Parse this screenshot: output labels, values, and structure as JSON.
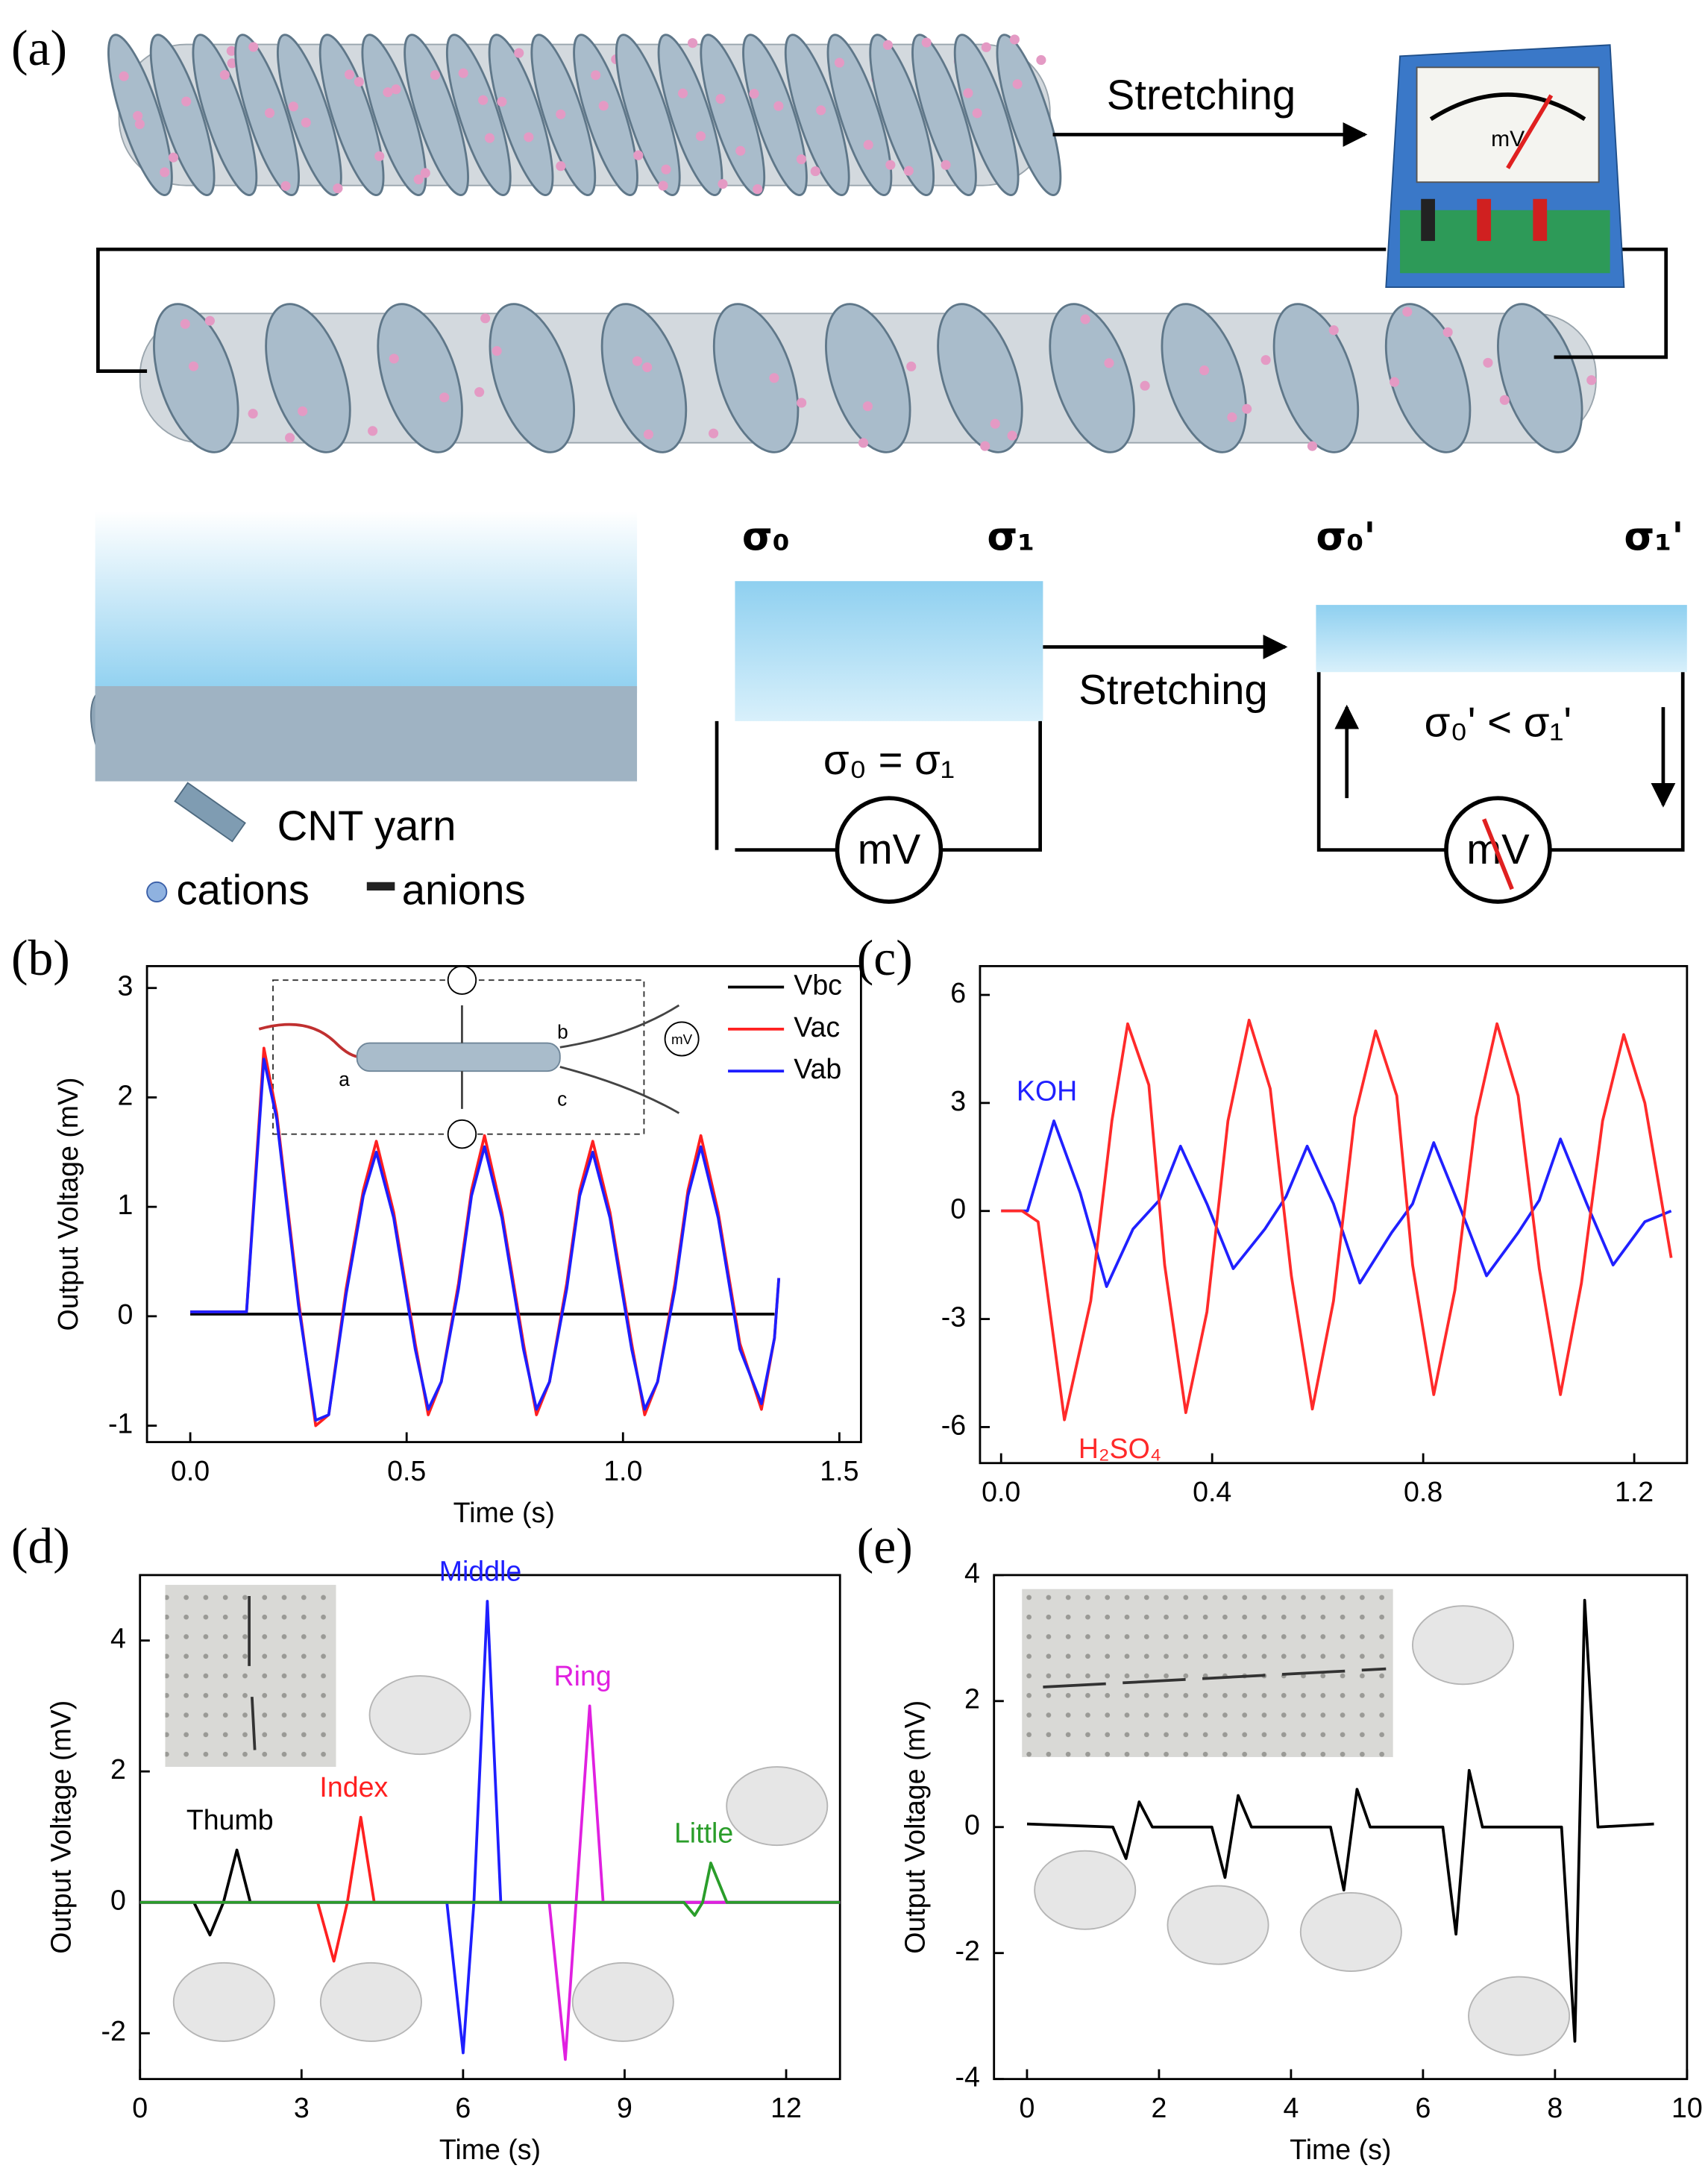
{
  "panel_labels": [
    "(a)",
    "(b)",
    "(c)",
    "(d)",
    "(e)"
  ],
  "diagram": {
    "texts": [
      "Stretching",
      "mV",
      "σ₀",
      "σ₁",
      "σ₀ = σ₁",
      "mV",
      "Stretching",
      "σ₀'",
      "σ₁'",
      "σ₀' < σ₁'",
      "mV",
      "CNT yarn",
      "cations",
      "anions"
    ]
  },
  "chart_data": [
    {
      "type": "line",
      "xlabel": "Time (s)",
      "ylabel": "Output Voltage (mV)",
      "xlim": [
        -0.1,
        1.55
      ],
      "ylim": [
        -1.15,
        3.2
      ],
      "xticks": [
        {
          "value": 0,
          "label": "0.0"
        },
        0.5,
        {
          "value": 1,
          "label": "1.0"
        },
        1.5
      ],
      "yticks": [
        -1,
        0,
        1,
        2,
        3
      ],
      "legend": "upper right",
      "annotations": [
        "a",
        "b",
        "c",
        "mV"
      ],
      "series": [
        {
          "name": "Vbc",
          "color": "#000000",
          "x": [
            0,
            1.35
          ],
          "values": [
            0.02,
            0.02
          ]
        },
        {
          "name": "Vac",
          "color": "#ff2020",
          "x": [
            0,
            0.13,
            0.15,
            0.17,
            0.2,
            0.25,
            0.29,
            0.32,
            0.36,
            0.4,
            0.43,
            0.47,
            0.52,
            0.55,
            0.58,
            0.62,
            0.65,
            0.68,
            0.72,
            0.77,
            0.8,
            0.83,
            0.87,
            0.9,
            0.93,
            0.97,
            1.02,
            1.05,
            1.08,
            1.12,
            1.15,
            1.18,
            1.22,
            1.27,
            1.32,
            1.35,
            1.36
          ],
          "values": [
            0.04,
            0.04,
            1.25,
            2.45,
            1.85,
            0.15,
            -1.0,
            -0.9,
            0.25,
            1.15,
            1.6,
            0.95,
            -0.25,
            -0.9,
            -0.6,
            0.3,
            1.15,
            1.65,
            0.95,
            -0.25,
            -0.9,
            -0.6,
            0.3,
            1.15,
            1.6,
            0.95,
            -0.25,
            -0.9,
            -0.6,
            0.3,
            1.15,
            1.65,
            0.95,
            -0.25,
            -0.85,
            -0.2,
            0.35
          ]
        },
        {
          "name": "Vab",
          "color": "#1e1eff",
          "x": [
            0,
            0.13,
            0.15,
            0.17,
            0.2,
            0.25,
            0.29,
            0.32,
            0.36,
            0.4,
            0.43,
            0.47,
            0.52,
            0.55,
            0.58,
            0.62,
            0.65,
            0.68,
            0.72,
            0.77,
            0.8,
            0.83,
            0.87,
            0.9,
            0.93,
            0.97,
            1.02,
            1.05,
            1.08,
            1.12,
            1.15,
            1.18,
            1.22,
            1.27,
            1.32,
            1.35,
            1.36
          ],
          "values": [
            0.04,
            0.04,
            1.2,
            2.35,
            1.8,
            0.1,
            -0.95,
            -0.9,
            0.2,
            1.1,
            1.5,
            0.9,
            -0.3,
            -0.85,
            -0.6,
            0.25,
            1.1,
            1.55,
            0.9,
            -0.3,
            -0.85,
            -0.6,
            0.25,
            1.1,
            1.5,
            0.9,
            -0.3,
            -0.85,
            -0.6,
            0.25,
            1.1,
            1.55,
            0.9,
            -0.3,
            -0.8,
            -0.2,
            0.35
          ]
        }
      ]
    },
    {
      "type": "line",
      "xlim": [
        -0.04,
        1.3
      ],
      "ylim": [
        -7,
        6.8
      ],
      "xticks": [
        {
          "value": 0,
          "label": "0.0"
        },
        0.4,
        0.8,
        1.2
      ],
      "yticks": [
        -6,
        -3,
        0,
        3,
        6
      ],
      "series": [
        {
          "name": "KOH",
          "color": "#2020ff",
          "x": [
            0,
            0.05,
            0.1,
            0.15,
            0.2,
            0.25,
            0.3,
            0.34,
            0.39,
            0.44,
            0.5,
            0.54,
            0.58,
            0.63,
            0.68,
            0.74,
            0.78,
            0.82,
            0.87,
            0.92,
            0.98,
            1.02,
            1.06,
            1.11,
            1.16,
            1.22,
            1.27
          ],
          "values": [
            0,
            0,
            2.5,
            0.5,
            -2.1,
            -0.5,
            0.3,
            1.8,
            0.2,
            -1.6,
            -0.5,
            0.4,
            1.8,
            0.2,
            -2.0,
            -0.6,
            0.2,
            1.9,
            0.1,
            -1.8,
            -0.6,
            0.3,
            2.0,
            0.2,
            -1.5,
            -0.3,
            0
          ]
        },
        {
          "name": "H₂SO₄",
          "color": "#ff2a2a",
          "x": [
            0,
            0.04,
            0.07,
            0.12,
            0.17,
            0.21,
            0.24,
            0.28,
            0.31,
            0.35,
            0.39,
            0.43,
            0.47,
            0.51,
            0.55,
            0.59,
            0.63,
            0.67,
            0.71,
            0.75,
            0.78,
            0.82,
            0.86,
            0.9,
            0.94,
            0.98,
            1.02,
            1.06,
            1.1,
            1.14,
            1.18,
            1.22,
            1.27
          ],
          "values": [
            0,
            0,
            -0.3,
            -5.8,
            -2.5,
            2.5,
            5.2,
            3.5,
            -1.5,
            -5.6,
            -2.8,
            2.5,
            5.3,
            3.4,
            -1.8,
            -5.5,
            -2.5,
            2.6,
            5.0,
            3.2,
            -1.5,
            -5.1,
            -2.2,
            2.6,
            5.2,
            3.2,
            -1.6,
            -5.1,
            -2.0,
            2.5,
            4.9,
            3.0,
            -1.3
          ]
        }
      ]
    },
    {
      "type": "line",
      "xlabel": "Time (s)",
      "ylabel": "Output Voltage (mV)",
      "xlim": [
        0,
        13
      ],
      "ylim": [
        -2.7,
        5
      ],
      "xticks": [
        0,
        3,
        6,
        9,
        12
      ],
      "yticks": [
        -2,
        0,
        2,
        4
      ],
      "series": [
        {
          "name": "Thumb",
          "color": "#000000",
          "x": [
            0,
            1.0,
            1.3,
            1.55,
            1.8,
            2.05,
            13
          ],
          "values": [
            0,
            0,
            -0.5,
            0,
            0.8,
            0,
            0
          ]
        },
        {
          "name": "Index",
          "color": "#ff2020",
          "x": [
            0,
            3.3,
            3.6,
            3.85,
            4.1,
            4.35,
            13
          ],
          "values": [
            0,
            0,
            -0.9,
            0,
            1.3,
            0,
            0
          ]
        },
        {
          "name": "Middle",
          "color": "#1e1eff",
          "x": [
            0,
            5.7,
            6.0,
            6.2,
            6.45,
            6.7,
            13
          ],
          "values": [
            0,
            0,
            -2.3,
            0,
            4.6,
            0,
            0
          ]
        },
        {
          "name": "Ring",
          "color": "#e020e0",
          "x": [
            0,
            7.6,
            7.9,
            8.1,
            8.35,
            8.6,
            13
          ],
          "values": [
            0,
            0,
            -2.4,
            0,
            3.0,
            0,
            0
          ]
        },
        {
          "name": "Little",
          "color": "#2a9d2a",
          "x": [
            0,
            10.1,
            10.3,
            10.45,
            10.6,
            10.9,
            13
          ],
          "values": [
            0,
            0,
            -0.2,
            0,
            0.6,
            0,
            0
          ]
        }
      ]
    },
    {
      "type": "line",
      "xlabel": "Time (s)",
      "ylabel": "Output Voltage (mV)",
      "xlim": [
        -0.5,
        10
      ],
      "ylim": [
        -4,
        4
      ],
      "xticks": [
        0,
        2,
        4,
        6,
        8,
        10
      ],
      "yticks": [
        -4,
        -2,
        0,
        2,
        4
      ],
      "series": [
        {
          "color": "#000000",
          "x": [
            0,
            1.3,
            1.5,
            1.7,
            1.9,
            2.8,
            3.0,
            3.2,
            3.4,
            4.6,
            4.8,
            5.0,
            5.2,
            6.3,
            6.5,
            6.7,
            6.9,
            8.1,
            8.3,
            8.45,
            8.65,
            9.5
          ],
          "values": [
            0.05,
            0,
            -0.5,
            0.4,
            0,
            0,
            -0.8,
            0.5,
            0,
            0,
            -1.0,
            0.6,
            0,
            0,
            -1.7,
            0.9,
            0,
            0,
            -3.4,
            3.6,
            0,
            0.05
          ]
        }
      ]
    }
  ]
}
